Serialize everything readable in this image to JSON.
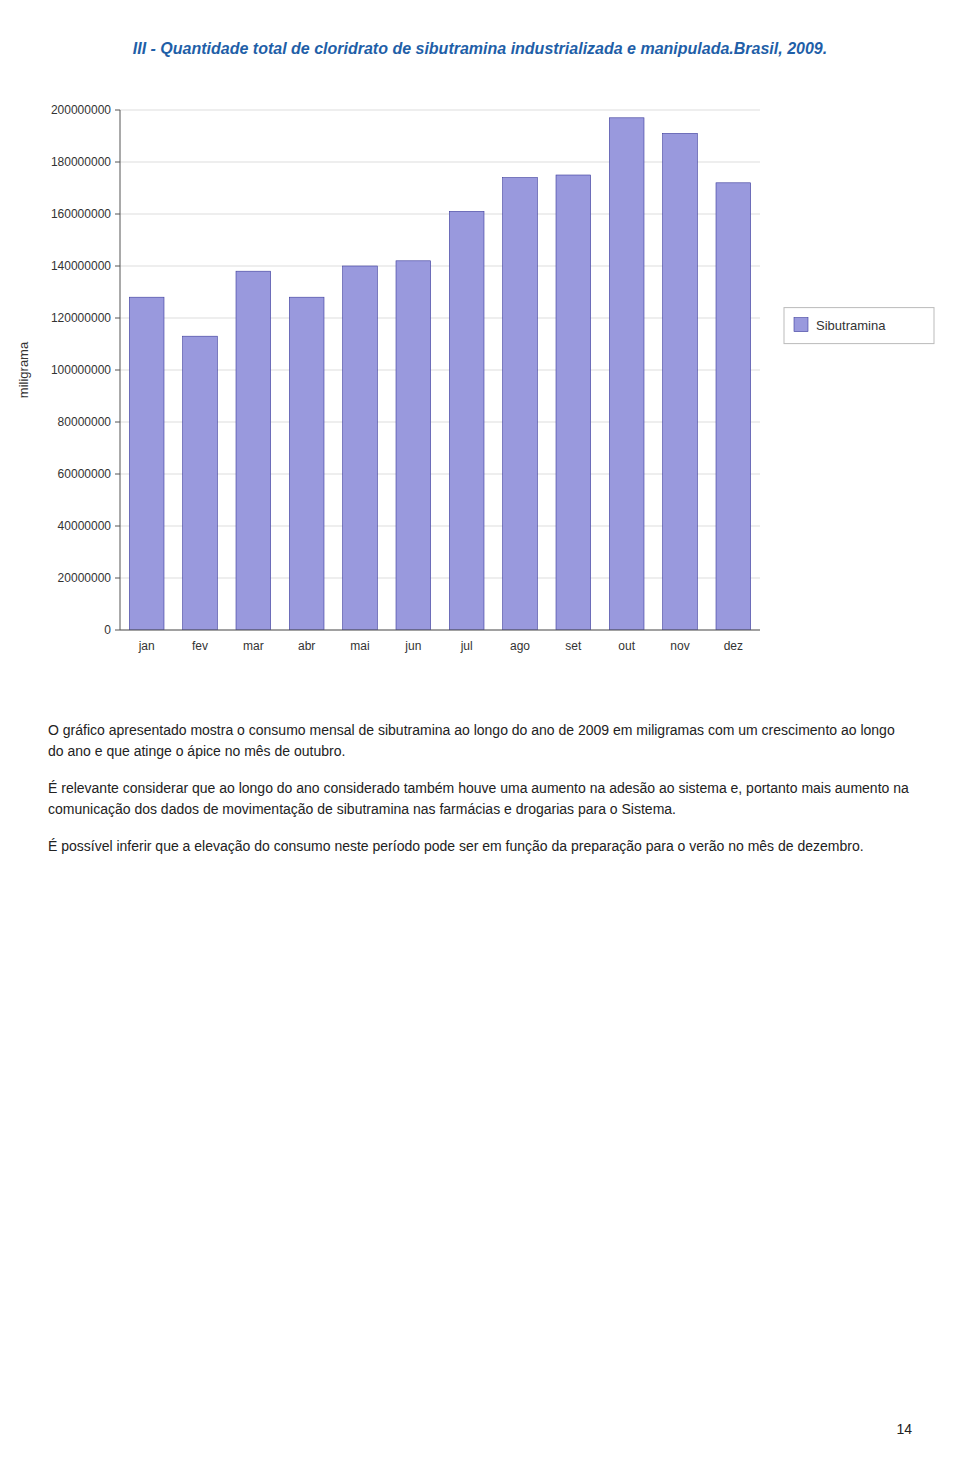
{
  "chart_data": {
    "type": "bar",
    "title": "III - Quantidade total de cloridrato de sibutramina industrializada e manipulada.Brasil, 2009.",
    "categories": [
      "jan",
      "fev",
      "mar",
      "abr",
      "mai",
      "jun",
      "jul",
      "ago",
      "set",
      "out",
      "nov",
      "dez"
    ],
    "series": [
      {
        "name": "Sibutramina",
        "color": "#9999dd",
        "values": [
          128000000,
          113000000,
          138000000,
          128000000,
          140000000,
          142000000,
          161000000,
          174000000,
          175000000,
          197000000,
          191000000,
          172000000
        ]
      }
    ],
    "ylabel": "miligrama",
    "ylim": [
      0,
      200000000
    ],
    "yticks": [
      0,
      20000000,
      40000000,
      60000000,
      80000000,
      100000000,
      120000000,
      140000000,
      160000000,
      180000000,
      200000000
    ],
    "grid": true,
    "legend": "right"
  },
  "paragraphs": [
    "O gráfico apresentado mostra o consumo mensal de sibutramina ao longo do ano de 2009 em miligramas com um crescimento ao longo do ano e que atinge o ápice no mês de outubro.",
    "É relevante considerar que ao longo do ano considerado também houve uma aumento na adesão ao sistema e, portanto mais aumento na comunicação dos dados de movimentação de sibutramina nas farmácias e drogarias para o Sistema.",
    "É possível inferir que a elevação do consumo neste período pode ser em função da preparação para o verão no mês de dezembro."
  ],
  "page_number": "14"
}
